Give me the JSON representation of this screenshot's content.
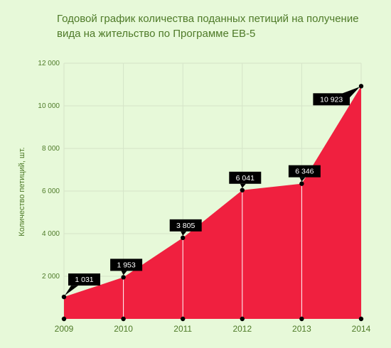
{
  "colors": {
    "background": "#e7f9d9",
    "area_fill": "#f0203f",
    "text": "#4e7a28",
    "grid": "#d5e4c8",
    "marker": "#000000",
    "label_bg": "#000000",
    "label_text": "#ffffff"
  },
  "chart_data": {
    "type": "area",
    "title": "Годовой график количества поданных петиций на получение вида на жительство по Программе EB-5",
    "xlabel": "",
    "ylabel": "Количество петиций, шт.",
    "categories": [
      "2009",
      "2010",
      "2011",
      "2012",
      "2013",
      "2014"
    ],
    "series": [
      {
        "values": [
          1031,
          1953,
          3805,
          6041,
          6346,
          10923
        ]
      }
    ],
    "data_labels": [
      "1 031",
      "1 953",
      "3 805",
      "6 041",
      "6 346",
      "10 923"
    ],
    "ylim": [
      0,
      12000
    ],
    "yticks": [
      2000,
      4000,
      6000,
      8000,
      10000,
      12000
    ],
    "ytick_labels": [
      "2 000",
      "4 000",
      "6 000",
      "8 000",
      "10 000",
      "12 000"
    ],
    "grid": true,
    "legend": "none"
  }
}
